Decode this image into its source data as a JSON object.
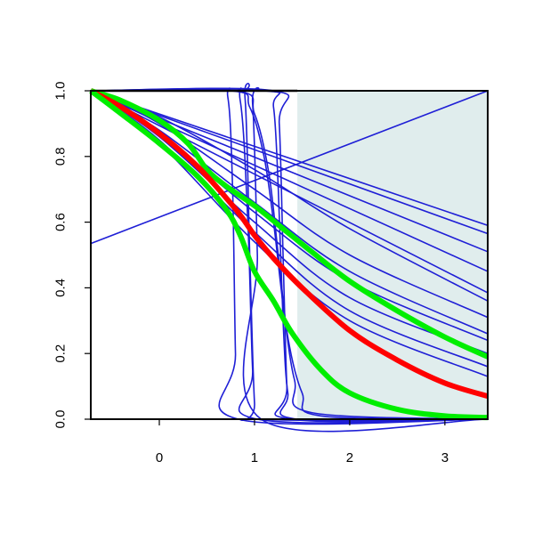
{
  "chart_data": {
    "type": "line",
    "title": "",
    "xlabel": "",
    "ylabel": "",
    "xlim": [
      -0.72,
      3.45
    ],
    "ylim": [
      0,
      1
    ],
    "x_ticks": [
      0,
      1,
      2,
      3
    ],
    "x_tick_labels": [
      "0",
      "1",
      "2",
      "3"
    ],
    "y_ticks": [
      0,
      0.2,
      0.4,
      0.6,
      0.8,
      1.0
    ],
    "y_tick_labels": [
      "0.0",
      "0.2",
      "0.4",
      "0.6",
      "0.8",
      "1.0"
    ],
    "grid": false,
    "legend": "none",
    "shaded_region": {
      "x_from": 1.45,
      "x_to": 3.45,
      "color": "#e0eded"
    },
    "colors": {
      "thin": "#1f1fd6",
      "red": "#ff0000",
      "green": "#00ee00"
    },
    "thin_series": [
      {
        "x": [
          -0.72,
          3.45
        ],
        "y": [
          0.535,
          1.0
        ]
      },
      {
        "x": [
          -0.72,
          3.45
        ],
        "y": [
          1.0,
          0.59
        ]
      },
      {
        "x": [
          -0.72,
          3.45
        ],
        "y": [
          1.0,
          0.565
        ]
      },
      {
        "x": [
          -0.72,
          3.45
        ],
        "y": [
          1.0,
          0.51
        ]
      },
      {
        "x": [
          -0.72,
          3.45
        ],
        "y": [
          1.0,
          0.45
        ]
      },
      {
        "x": [
          -0.72,
          3.45
        ],
        "y": [
          1.0,
          0.385
        ]
      },
      {
        "x": [
          -0.72,
          0.0,
          1.0,
          2.0,
          3.45
        ],
        "y": [
          1.0,
          0.92,
          0.76,
          0.58,
          0.36
        ]
      },
      {
        "x": [
          -0.72,
          0.0,
          1.0,
          2.0,
          3.45
        ],
        "y": [
          1.0,
          0.9,
          0.7,
          0.5,
          0.31
        ]
      },
      {
        "x": [
          -0.72,
          0.0,
          1.0,
          2.0,
          3.45
        ],
        "y": [
          1.0,
          0.88,
          0.66,
          0.45,
          0.26
        ]
      },
      {
        "x": [
          -0.72,
          0.0,
          1.0,
          2.0,
          3.45
        ],
        "y": [
          1.0,
          0.87,
          0.63,
          0.42,
          0.24
        ]
      },
      {
        "x": [
          -0.72,
          0.0,
          1.0,
          2.0,
          3.45
        ],
        "y": [
          1.0,
          0.86,
          0.6,
          0.37,
          0.2
        ]
      },
      {
        "x": [
          -0.72,
          0.0,
          1.0,
          2.0,
          3.45
        ],
        "y": [
          1.0,
          0.85,
          0.57,
          0.33,
          0.16
        ]
      },
      {
        "x": [
          -0.72,
          0.0,
          1.0,
          2.0,
          3.45
        ],
        "y": [
          1.0,
          0.84,
          0.54,
          0.3,
          0.13
        ]
      },
      {
        "x": [
          -0.72,
          0.6,
          0.72,
          0.77,
          0.8,
          0.83,
          3.45
        ],
        "y": [
          1.0,
          1.0,
          0.98,
          0.7,
          0.2,
          0.0,
          0.0
        ]
      },
      {
        "x": [
          -0.72,
          0.7,
          0.85,
          0.93,
          0.98,
          1.03,
          3.45
        ],
        "y": [
          1.0,
          1.0,
          0.97,
          0.6,
          0.15,
          0.0,
          0.0
        ]
      },
      {
        "x": [
          -0.72,
          0.8,
          0.9,
          0.95,
          1.0,
          1.05,
          3.45
        ],
        "y": [
          1.0,
          1.0,
          0.98,
          0.5,
          0.05,
          0.0,
          0.0
        ]
      },
      {
        "x": [
          -0.72,
          0.9,
          0.98,
          1.03,
          1.07,
          3.45
        ],
        "y": [
          1.0,
          1.0,
          0.96,
          0.5,
          0.0,
          0.0
        ]
      },
      {
        "x": [
          -0.72,
          0.75,
          0.95,
          1.1,
          1.2,
          1.3,
          1.42,
          1.6,
          3.45
        ],
        "y": [
          1.0,
          1.0,
          0.95,
          0.8,
          0.6,
          0.35,
          0.12,
          0.02,
          0.0
        ]
      },
      {
        "x": [
          -0.72,
          0.8,
          1.0,
          1.15,
          1.25,
          1.35,
          1.5,
          1.7,
          3.45
        ],
        "y": [
          1.0,
          1.0,
          0.93,
          0.75,
          0.5,
          0.25,
          0.08,
          0.01,
          0.0
        ]
      },
      {
        "x": [
          -0.72,
          1.1,
          1.2,
          1.25,
          1.3,
          1.35,
          1.45,
          3.45
        ],
        "y": [
          1.0,
          1.0,
          0.95,
          0.7,
          0.3,
          0.08,
          0.0,
          0.0
        ]
      },
      {
        "x": [
          -0.72,
          1.2,
          1.26,
          1.3,
          1.34,
          1.38,
          3.45
        ],
        "y": [
          1.0,
          1.0,
          0.9,
          0.5,
          0.1,
          0.0,
          0.0
        ]
      }
    ],
    "flat_segment": {
      "x": [
        -0.72,
        1.45
      ],
      "y": [
        1.0,
        1.0
      ]
    },
    "red_series": {
      "x": [
        -0.72,
        -0.4,
        0.0,
        0.4,
        0.8,
        1.0,
        1.2,
        1.5,
        2.0,
        2.5,
        3.0,
        3.45
      ],
      "y": [
        1.0,
        0.95,
        0.87,
        0.77,
        0.64,
        0.56,
        0.49,
        0.4,
        0.27,
        0.18,
        0.11,
        0.07
      ]
    },
    "green_upper": {
      "x": [
        -0.72,
        -0.4,
        0.0,
        0.3,
        0.5,
        0.7,
        1.0,
        1.3,
        1.6,
        2.0,
        2.5,
        3.0,
        3.45
      ],
      "y": [
        1.0,
        0.97,
        0.91,
        0.84,
        0.76,
        0.71,
        0.65,
        0.58,
        0.51,
        0.42,
        0.33,
        0.25,
        0.19
      ]
    },
    "green_lower": {
      "x": [
        -0.72,
        -0.4,
        0.0,
        0.4,
        0.7,
        0.85,
        1.0,
        1.2,
        1.4,
        1.7,
        2.0,
        2.5,
        3.0,
        3.45
      ],
      "y": [
        1.0,
        0.93,
        0.84,
        0.74,
        0.64,
        0.56,
        0.45,
        0.36,
        0.26,
        0.15,
        0.08,
        0.03,
        0.01,
        0.005
      ]
    }
  }
}
